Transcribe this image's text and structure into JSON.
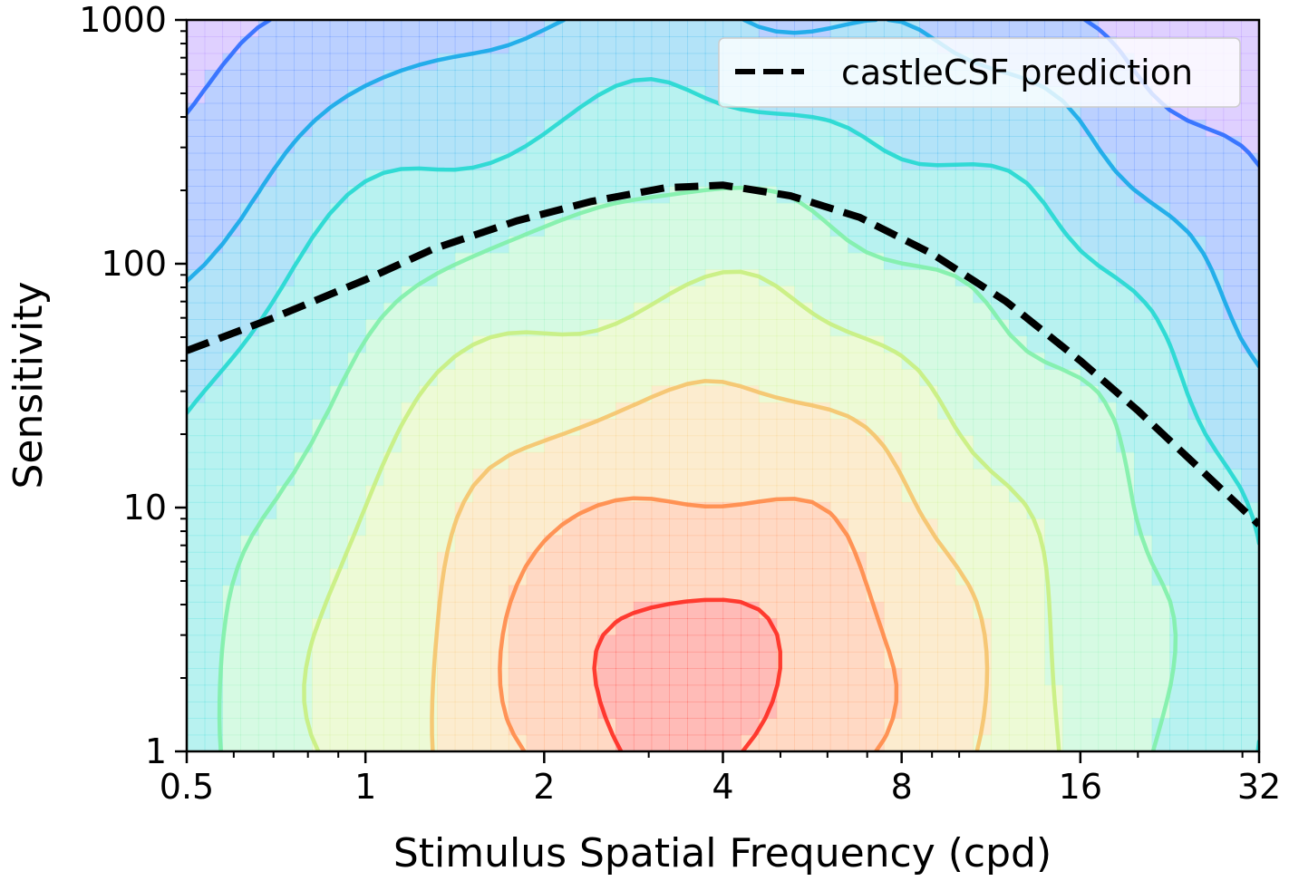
{
  "chart_data": {
    "type": "contour",
    "xlabel": "Stimulus Spatial Frequency (cpd)",
    "ylabel": "Sensitivity",
    "x_scale": "log2",
    "y_scale": "log10",
    "xlim": [
      0.5,
      32
    ],
    "ylim": [
      1,
      1000
    ],
    "x_ticks": [
      0.5,
      1,
      2,
      4,
      8,
      16,
      32
    ],
    "x_tick_labels": [
      "0.5",
      "1",
      "2",
      "4",
      "8",
      "16",
      "32"
    ],
    "y_ticks": [
      1,
      10,
      100,
      1000
    ],
    "y_tick_labels": [
      "1",
      "10",
      "100",
      "1000"
    ],
    "legend": {
      "position": "top-right",
      "entries": [
        "castleCSF prediction"
      ]
    },
    "series": [
      {
        "name": "castleCSF prediction",
        "style": "dashed",
        "color": "#000000",
        "x": [
          0.5,
          0.7,
          1.0,
          1.3,
          1.8,
          2.4,
          3.2,
          4.0,
          5.2,
          6.8,
          9.0,
          12.0,
          16.0,
          20.0,
          25.0,
          32.0
        ],
        "y": [
          44,
          60,
          86,
          115,
          150,
          180,
          205,
          210,
          190,
          155,
          110,
          70,
          40,
          25,
          15,
          8.5
        ]
      }
    ],
    "contour_peak": {
      "x": 3.6,
      "y": 2.0
    },
    "colormap": [
      "#9a6cff",
      "#2b6cff",
      "#14a8e8",
      "#22d8d0",
      "#7ff0a8",
      "#c8ee7e",
      "#f5c36a",
      "#ff8a48",
      "#ff2a20"
    ]
  }
}
